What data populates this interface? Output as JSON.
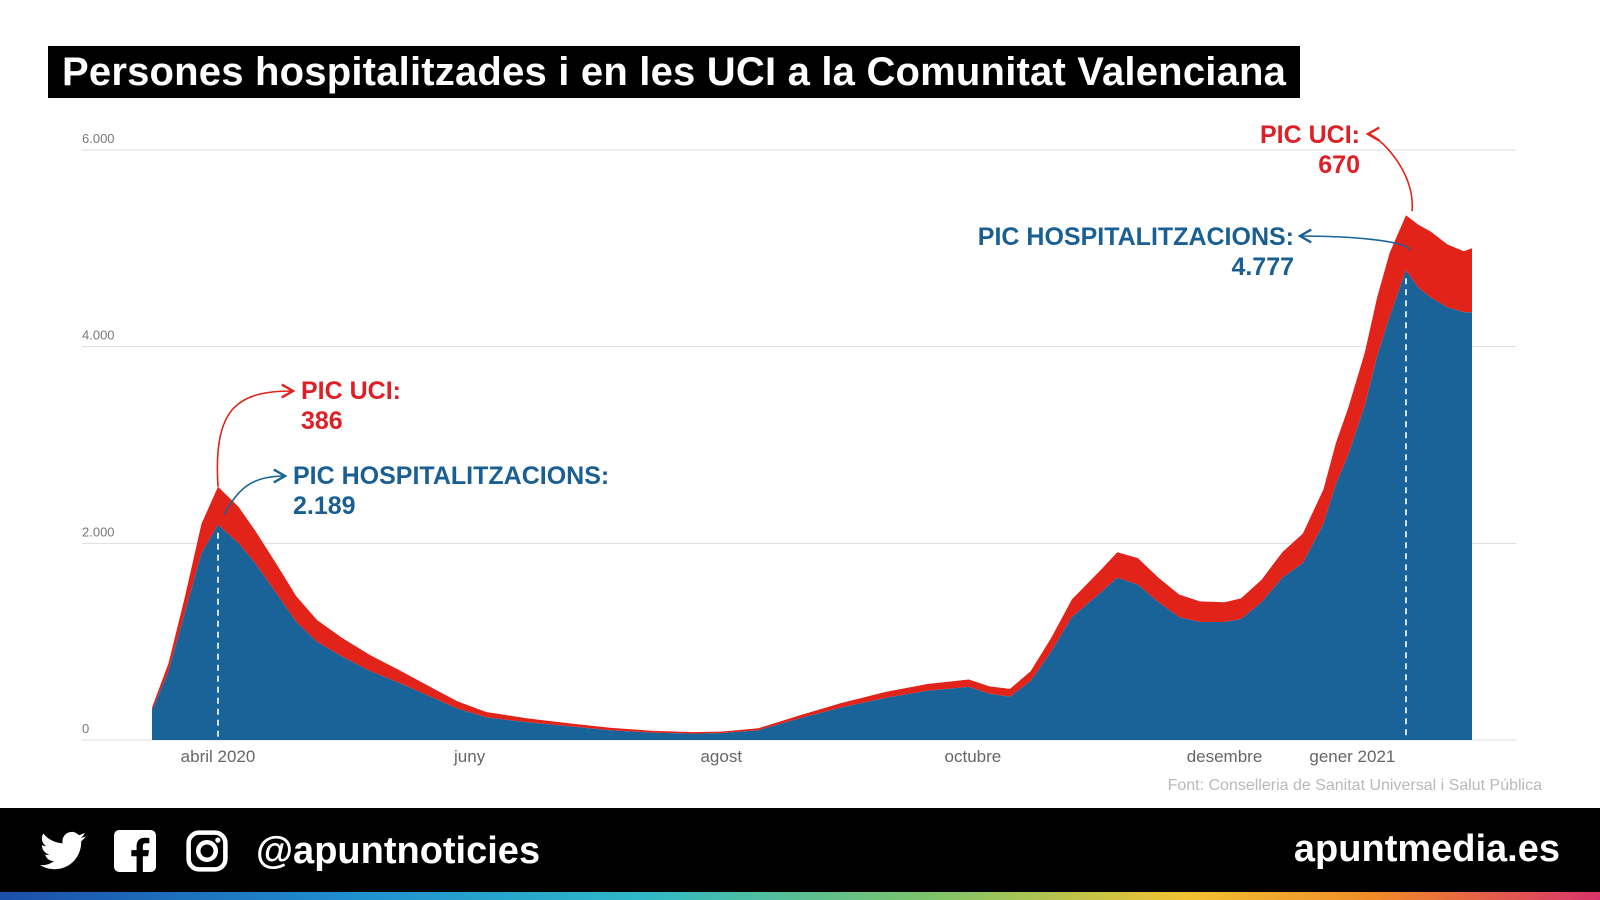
{
  "title": "Persones hospitalitzades i en les UCI a la Comunitat Valenciana",
  "source": "Font: Conselleria de Sanitat Universal i Salut Pública",
  "footer": {
    "handle": "@apuntnoticies",
    "site": "apuntmedia.es",
    "icons": [
      "twitter-icon",
      "facebook-icon",
      "instagram-icon"
    ]
  },
  "annotations": {
    "peak1_uci_label": "PIC UCI:",
    "peak1_uci_value": "386",
    "peak1_hosp_label": "PIC HOSPITALITZACIONS:",
    "peak1_hosp_value": "2.189",
    "peak2_uci_label": "PIC UCI:",
    "peak2_uci_value": "670",
    "peak2_hosp_label": "PIC HOSPITALITZACIONS:",
    "peak2_hosp_value": "4.777"
  },
  "colors": {
    "hospitalitzacions": "#1a6398",
    "uci": "#e2231a",
    "grid": "#dddddd",
    "tick": "#777777"
  },
  "chart_data": {
    "type": "area",
    "stacked": true,
    "x_unit": "date",
    "ylim": [
      0,
      6000
    ],
    "grid": "horizontal",
    "y_ticks": [
      {
        "value": 0,
        "label": "0"
      },
      {
        "value": 2000,
        "label": "2.000"
      },
      {
        "value": 4000,
        "label": "4.000"
      },
      {
        "value": 6000,
        "label": "6.000"
      }
    ],
    "x_ticks": [
      {
        "date": "2020-04-01",
        "label": "abril 2020"
      },
      {
        "date": "2020-06-01",
        "label": "juny"
      },
      {
        "date": "2020-08-01",
        "label": "agost"
      },
      {
        "date": "2020-10-01",
        "label": "octubre"
      },
      {
        "date": "2020-12-01",
        "label": "desembre"
      },
      {
        "date": "2021-01-01",
        "label": "gener 2021"
      }
    ],
    "dates": [
      "2020-03-16",
      "2020-03-20",
      "2020-03-24",
      "2020-03-28",
      "2020-04-01",
      "2020-04-06",
      "2020-04-10",
      "2020-04-15",
      "2020-04-20",
      "2020-04-25",
      "2020-05-01",
      "2020-05-08",
      "2020-05-15",
      "2020-05-22",
      "2020-05-29",
      "2020-06-05",
      "2020-06-15",
      "2020-06-25",
      "2020-07-05",
      "2020-07-15",
      "2020-07-25",
      "2020-08-01",
      "2020-08-10",
      "2020-08-20",
      "2020-08-30",
      "2020-09-10",
      "2020-09-20",
      "2020-09-30",
      "2020-10-05",
      "2020-10-10",
      "2020-10-15",
      "2020-10-20",
      "2020-10-25",
      "2020-11-01",
      "2020-11-05",
      "2020-11-10",
      "2020-11-15",
      "2020-11-20",
      "2020-11-25",
      "2020-12-01",
      "2020-12-05",
      "2020-12-10",
      "2020-12-15",
      "2020-12-20",
      "2020-12-25",
      "2020-12-28",
      "2020-12-31",
      "2021-01-04",
      "2021-01-07",
      "2021-01-10",
      "2021-01-14",
      "2021-01-17",
      "2021-01-20",
      "2021-01-24",
      "2021-01-28",
      "2021-01-30"
    ],
    "series": [
      {
        "name": "hospitalitzacions",
        "values": [
          300,
          700,
          1300,
          1900,
          2189,
          2000,
          1800,
          1500,
          1200,
          1000,
          850,
          700,
          580,
          450,
          320,
          230,
          180,
          140,
          100,
          75,
          65,
          70,
          100,
          220,
          330,
          430,
          500,
          540,
          470,
          440,
          600,
          900,
          1250,
          1500,
          1650,
          1580,
          1400,
          1250,
          1200,
          1200,
          1230,
          1400,
          1650,
          1800,
          2200,
          2600,
          2900,
          3400,
          3900,
          4300,
          4777,
          4600,
          4500,
          4400,
          4350,
          4350
        ]
      },
      {
        "name": "UCI",
        "values": [
          30,
          80,
          160,
          300,
          386,
          370,
          330,
          300,
          260,
          220,
          190,
          160,
          130,
          100,
          75,
          55,
          40,
          30,
          25,
          20,
          15,
          15,
          20,
          30,
          45,
          60,
          70,
          75,
          75,
          80,
          100,
          140,
          180,
          230,
          260,
          270,
          250,
          230,
          210,
          200,
          210,
          230,
          260,
          300,
          350,
          420,
          480,
          540,
          600,
          650,
          560,
          640,
          670,
          640,
          620,
          650
        ]
      }
    ]
  }
}
